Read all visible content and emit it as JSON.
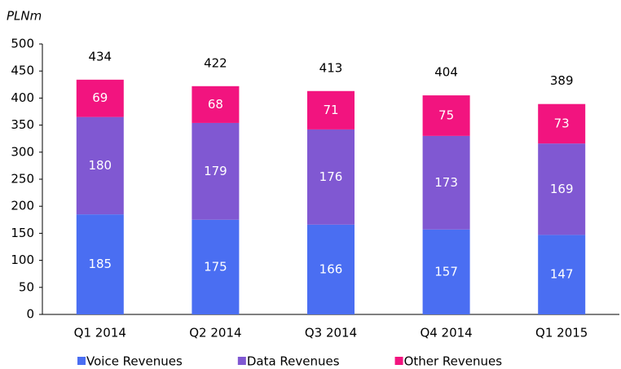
{
  "chart_data": {
    "type": "stacked_bar",
    "y_unit": "PLNm",
    "categories": [
      "Q1 2014",
      "Q2 2014",
      "Q3 2014",
      "Q4 2014",
      "Q1 2015"
    ],
    "series": [
      {
        "name": "Voice Revenues",
        "color": "#4a6ef2",
        "values": [
          185,
          175,
          166,
          157,
          147
        ]
      },
      {
        "name": "Data Revenues",
        "color": "#8058d2",
        "values": [
          180,
          179,
          176,
          173,
          169
        ]
      },
      {
        "name": "Other Revenues",
        "color": "#f2147f",
        "values": [
          69,
          68,
          71,
          75,
          73
        ]
      }
    ],
    "totals": [
      434,
      422,
      413,
      404,
      389
    ],
    "ylim": [
      0,
      500
    ],
    "yticks": [
      0,
      50,
      100,
      150,
      200,
      250,
      300,
      350,
      400,
      450,
      500
    ],
    "legend": "bottom"
  }
}
